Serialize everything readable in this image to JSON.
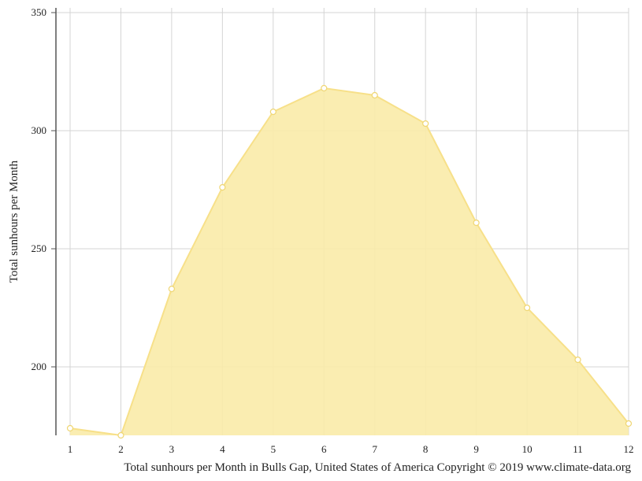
{
  "chart_data": {
    "type": "area",
    "x": [
      1,
      2,
      3,
      4,
      5,
      6,
      7,
      8,
      9,
      10,
      11,
      12
    ],
    "y": [
      174,
      171,
      233,
      276,
      308,
      318,
      315,
      303,
      261,
      225,
      203,
      176
    ],
    "xlim": [
      1,
      12
    ],
    "ylim": [
      171,
      352
    ],
    "x_ticks": [
      "1",
      "2",
      "3",
      "4",
      "5",
      "6",
      "7",
      "8",
      "9",
      "10",
      "11",
      "12"
    ],
    "y_ticks": [
      200,
      250,
      300,
      350
    ],
    "ylabel": "Total sunhours per Month",
    "xlabel": "",
    "caption": "Total sunhours per Month in Bulls Gap, United States of America Copyright © 2019 www.climate-data.org",
    "grid": true,
    "colors": {
      "fill": "#f9eba8",
      "line": "#f7e089",
      "point_stroke": "#efd673",
      "grid": "#d4d4d4",
      "axis": "#555555"
    }
  }
}
